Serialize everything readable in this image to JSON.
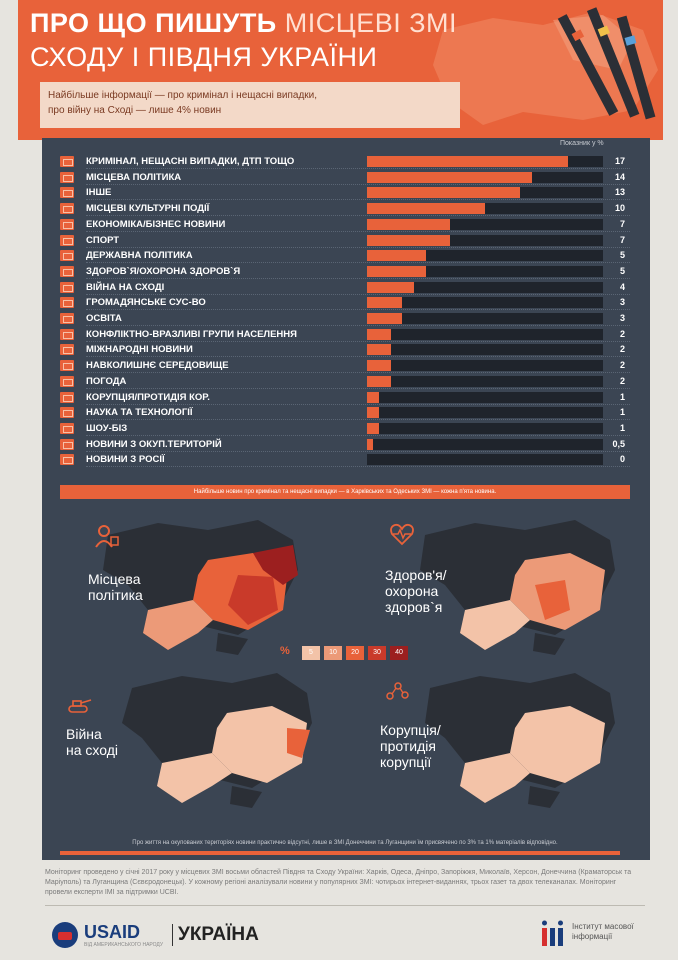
{
  "header": {
    "title_bold": "ПРО ЩО ПИШУТЬ",
    "title_light": "МІСЦЕВІ ЗМІ",
    "title_line2": "СХОДУ І ПІВДНЯ УКРАЇНИ",
    "subtitle_line1": "Найбільше інформації — про кримінал і нещасні випадки,",
    "subtitle_line2": "про війну на Сході — лише 4% новин"
  },
  "chart_data": {
    "type": "bar",
    "orientation": "horizontal",
    "unit_label": "Показник у %",
    "xlim": [
      0,
      20
    ],
    "categories": [
      "КРИМІНАЛ, НЕЩАСНІ ВИПАДКИ, ДТП ТОЩО",
      "МІСЦЕВА ПОЛІТИКА",
      "ІНШЕ",
      "МІСЦЕВІ КУЛЬТУРНІ ПОДІЇ",
      "ЕКОНОМІКА/БІЗНЕС НОВИНИ",
      "СПОРТ",
      "ДЕРЖАВНА ПОЛІТИКА",
      "ЗДОРОВ`Я/ОХОРОНА ЗДОРОВ`Я",
      "ВІЙНА НА СХОДІ",
      "ГРОМАДЯНСЬКЕ СУС-ВО",
      "ОСВІТА",
      "КОНФЛІКТНО-ВРАЗЛИВІ ГРУПИ НАСЕЛЕННЯ",
      "МІЖНАРОДНІ НОВИНИ",
      "НАВКОЛИШНЄ СЕРЕДОВИЩЕ",
      "ПОГОДА",
      "КОРУПЦІЯ/ПРОТИДІЯ КОР.",
      "НАУКА ТА ТЕХНОЛОГІЇ",
      "ШОУ-БІЗ",
      "НОВИНИ З ОКУП.ТЕРИТОРІЙ",
      "НОВИНИ З РОСІЇ"
    ],
    "values": [
      17,
      14,
      13,
      10,
      7,
      7,
      5,
      5,
      4,
      3,
      3,
      2,
      2,
      2,
      2,
      1,
      1,
      1,
      0.5,
      0
    ],
    "value_labels": [
      "17",
      "14",
      "13",
      "10",
      "7",
      "7",
      "5",
      "5",
      "4",
      "3",
      "3",
      "2",
      "2",
      "2",
      "2",
      "1",
      "1",
      "1",
      "0,5",
      "0"
    ],
    "bar_color": "#e8623a",
    "track_color": "#1f242c"
  },
  "note_top": "Найбільше новин про кримінал та нещасні випадки — в Харківських та Одеських ЗМІ — кожна п'ята новина.",
  "maps": {
    "local_politics": {
      "label_line1": "Місцева",
      "label_line2": "політика",
      "icon": "politician-icon"
    },
    "health": {
      "label_line1": "Здоров'я/",
      "label_line2": "охорона",
      "label_line3": "здоров`я",
      "icon": "heartbeat-icon"
    },
    "war": {
      "label_line1": "Війна",
      "label_line2": "на сході",
      "icon": "tank-icon"
    },
    "corruption": {
      "label_line1": "Корупція/",
      "label_line2": "протидія",
      "label_line3": "корупції",
      "icon": "network-icon"
    }
  },
  "legend": {
    "symbol": "%",
    "steps": [
      "5",
      "10",
      "20",
      "30",
      "40"
    ],
    "colors": [
      "#f3c3a8",
      "#ec9a78",
      "#e8623a",
      "#c93a2a",
      "#9c1f1f"
    ]
  },
  "note_bottom": "Про життя на окупованих територіях новини практично відсутні, лише в ЗМІ Донеччини та Луганщини їм присвячено по 3% та 1% матеріалів відповідно.",
  "footer": {
    "text": "Моніторинг проведено у січні 2017 року у місцевих ЗМІ восьми областей Півдня та Сходу України: Харків, Одеса, Дніпро, Запоріжжя, Миколаїв, Херсон, Донеччина (Краматорськ та Маріуполь) та Луганщина (Сєвєродонецьк). У кожному регіоні аналізували новини у популярних ЗМІ: чотирьох інтернет-виданнях, трьох газет та двох телеканалах. Моніторинг провели експерти ІМІ за підтримки UCBI.",
    "usaid_main": "USAID",
    "usaid_sub": "ВІД АМЕРИКАНСЬКОГО НАРОДУ",
    "ukraina": "УКРАЇНА",
    "imi_line1": "Інститут масової",
    "imi_line2": "інформації"
  }
}
